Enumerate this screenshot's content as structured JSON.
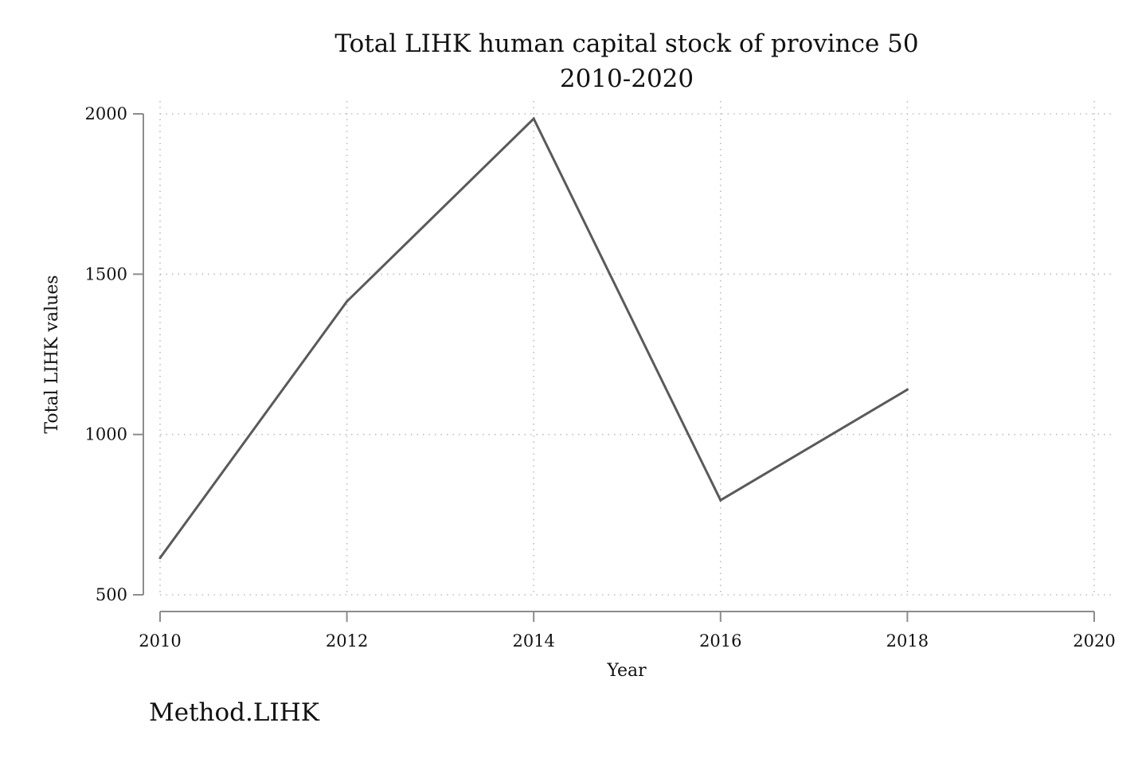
{
  "chart_data": {
    "type": "line",
    "title": "Total LIHK human capital stock of province 50",
    "subtitle": "2010-2020",
    "xlabel": "Year",
    "ylabel": "Total LIHK values",
    "note": "Method.LIHK",
    "x": [
      2010,
      2012,
      2014,
      2016,
      2018
    ],
    "series": [
      {
        "values": [
          615,
          1415,
          1985,
          795,
          1140
        ]
      }
    ],
    "xlim": [
      2010,
      2020
    ],
    "ylim": [
      500,
      2000
    ],
    "xticks": [
      "2010",
      "2012",
      "2014",
      "2016",
      "2018",
      "2020"
    ],
    "yticks": [
      "500",
      "1000",
      "1500",
      "2000"
    ],
    "grid": true,
    "line_color": "#5a5a5a"
  }
}
